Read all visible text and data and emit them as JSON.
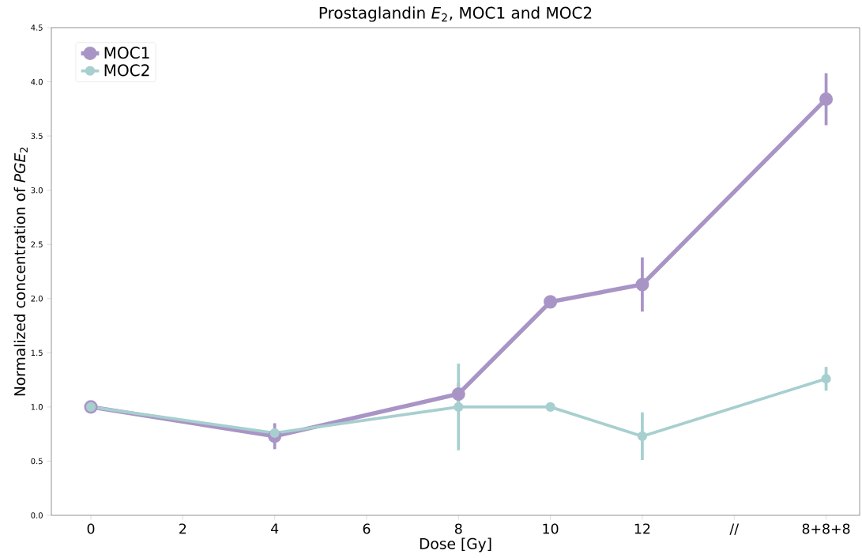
{
  "chart_data": {
    "type": "line",
    "title": "Prostaglandin *E*$_{2}$, MOC1 and MOC2",
    "xlabel": "Dose [Gy]",
    "ylabel": "Normalized concentration of *PGE*$_{2}$",
    "x": [
      0,
      4,
      8,
      10,
      12,
      16
    ],
    "series": [
      {
        "name": "MOC1",
        "color": "#a994c6",
        "values": [
          1.0,
          0.73,
          1.12,
          1.97,
          2.13,
          3.84
        ],
        "errors": [
          null,
          0.12,
          0.1,
          null,
          0.25,
          0.24
        ]
      },
      {
        "name": "MOC2",
        "color": "#a7cfcf",
        "values": [
          1.0,
          0.76,
          1.0,
          1.0,
          0.73,
          1.26
        ],
        "errors": [
          null,
          null,
          0.4,
          null,
          0.22,
          0.11
        ]
      }
    ],
    "xlim": [
      -0.86,
      16.73
    ],
    "ylim": [
      0,
      4.5
    ],
    "xticks": [
      0,
      2,
      4,
      6,
      8,
      10,
      12,
      {
        "value": 14,
        "label": "//"
      },
      {
        "value": 16,
        "label": "8+8+8"
      }
    ],
    "yticks": [
      {
        "value": 0,
        "label": "0.0"
      },
      {
        "value": 0.5,
        "label": "0.5"
      },
      {
        "value": 1,
        "label": "1.0"
      },
      {
        "value": 1.5,
        "label": "1.5"
      },
      {
        "value": 2,
        "label": "2.0"
      },
      {
        "value": 2.5,
        "label": "2.5"
      },
      {
        "value": 3,
        "label": "3.0"
      },
      {
        "value": 3.5,
        "label": "3.5"
      },
      {
        "value": 4,
        "label": "4.0"
      },
      {
        "value": 4.5,
        "label": "4.5"
      }
    ],
    "grid": false,
    "legend": "top left",
    "marker": "circle",
    "line_style": "solid"
  }
}
